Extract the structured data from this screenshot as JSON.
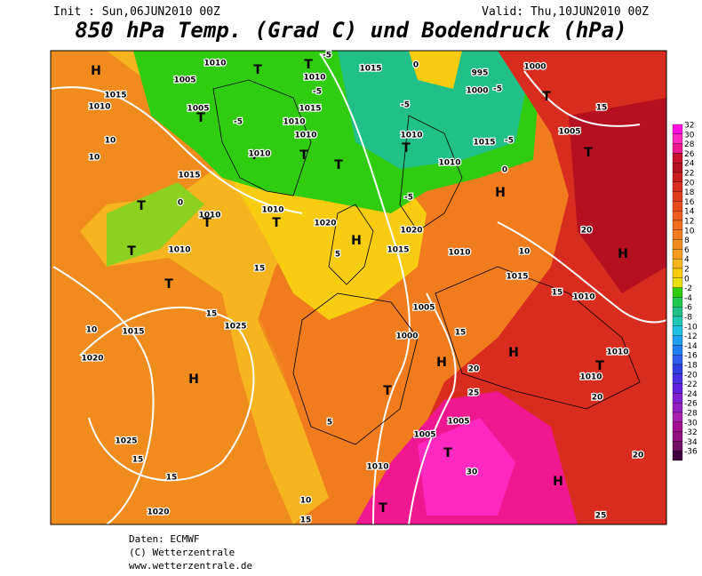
{
  "header": {
    "init": "Init : Sun,06JUN2010 00Z",
    "valid": "Valid: Thu,10JUN2010 00Z",
    "title": "850 hPa Temp. (Grad C) und Bodendruck (hPa)"
  },
  "colorbar": {
    "values": [
      32,
      30,
      28,
      26,
      24,
      22,
      20,
      18,
      16,
      14,
      12,
      10,
      8,
      6,
      4,
      2,
      0,
      -2,
      -4,
      -6,
      -8,
      -10,
      -12,
      -14,
      -16,
      -18,
      -20,
      -22,
      -24,
      -26,
      -28,
      -30,
      -32,
      -34,
      -36
    ],
    "colors": [
      "#ff10e0",
      "#ff28c0",
      "#f01890",
      "#c8102c",
      "#b41020",
      "#c81e1e",
      "#d82c1e",
      "#e03c1e",
      "#e84c1e",
      "#ee5c1e",
      "#f06c1e",
      "#f07c1e",
      "#f08c1e",
      "#f49c1e",
      "#f6b41e",
      "#f8cc10",
      "#e8e010",
      "#30cc10",
      "#20c850",
      "#20c088",
      "#20c8b8",
      "#20c0e0",
      "#20a0f0",
      "#2080f0",
      "#3060f0",
      "#3040e0",
      "#4830e0",
      "#6020e0",
      "#8020d0",
      "#9420c0",
      "#a820b0",
      "#a01090",
      "#901080",
      "#701060",
      "#400040"
    ]
  },
  "footer": {
    "source": "Daten: ECMWF",
    "copyright": "(C) Wetterzentrale",
    "url": "www.wetterzentrale.de"
  },
  "map": {
    "labels": [
      "H",
      "1015",
      "1010",
      "10",
      "10",
      "T",
      "1005",
      "1005",
      "1010",
      "T",
      "T",
      "-5",
      "1010",
      "-5",
      "1015",
      "1010",
      "1010",
      "-5",
      "T",
      "1010",
      "T",
      "T",
      "1015",
      "0",
      "995",
      "1000",
      "-5",
      "1000",
      "T",
      "-5",
      "1010",
      "T",
      "1015",
      "-5",
      "1010",
      "0",
      "H",
      "-5",
      "1005",
      "T",
      "15",
      "1015",
      "T",
      "0",
      "1010",
      "T",
      "1010",
      "T",
      "1020",
      "5",
      "H",
      "1020",
      "1015",
      "1010",
      "10",
      "20",
      "H",
      "T",
      "1010",
      "T",
      "15",
      "1015",
      "15",
      "1010",
      "10",
      "1015",
      "15",
      "1025",
      "1020",
      "1005",
      "1000",
      "15",
      "H",
      "20",
      "H",
      "T",
      "1010",
      "1010",
      "H",
      "T",
      "25",
      "1005",
      "1005",
      "1025",
      "15",
      "T",
      "30",
      "1010",
      "15",
      "H",
      "20",
      "10",
      "1020",
      "T",
      "15",
      "25",
      "5",
      "20"
    ]
  }
}
